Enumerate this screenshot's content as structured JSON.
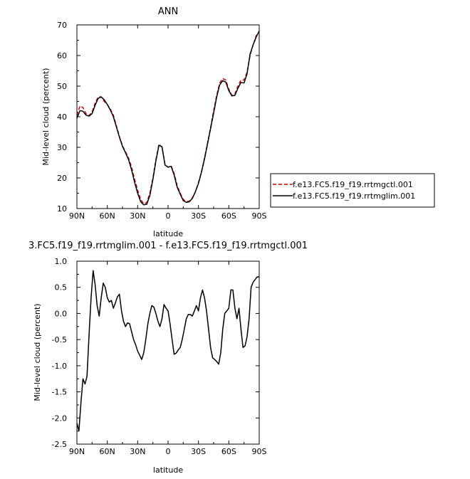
{
  "chart_data": [
    {
      "type": "line",
      "title": "ANN",
      "xlabel": "latitude",
      "ylabel": "Mid-level cloud (percent)",
      "xlim": [
        90,
        -90
      ],
      "ylim": [
        10,
        70
      ],
      "xticks": [
        90,
        60,
        30,
        0,
        -30,
        -60,
        -90
      ],
      "xtick_labels": [
        "90N",
        "60N",
        "30N",
        "0",
        "30S",
        "60S",
        "90S"
      ],
      "yticks": [
        10,
        20,
        30,
        40,
        50,
        60,
        70
      ],
      "ytick_labels": [
        "10",
        "20",
        "30",
        "40",
        "50",
        "60",
        "70"
      ],
      "legend_position": "right",
      "series": [
        {
          "name": "f.e13.FC5.f19_f19.rrtmgctl.001",
          "color": "#cc0000",
          "dash": "dashed",
          "x": [
            90,
            87,
            84,
            81,
            78,
            75,
            72,
            69,
            66,
            63,
            60,
            57,
            54,
            51,
            48,
            45,
            42,
            39,
            36,
            33,
            30,
            27,
            24,
            21,
            18,
            15,
            12,
            9,
            6,
            3,
            0,
            -3,
            -6,
            -9,
            -12,
            -15,
            -18,
            -21,
            -24,
            -27,
            -30,
            -33,
            -36,
            -39,
            -42,
            -45,
            -48,
            -51,
            -54,
            -57,
            -60,
            -63,
            -66,
            -69,
            -72,
            -75,
            -78,
            -81,
            -84,
            -87,
            -90
          ],
          "y": [
            40.5,
            43.5,
            43.0,
            41.0,
            40.4,
            41.5,
            44.5,
            46.5,
            46.5,
            45.0,
            44.0,
            42.5,
            40.5,
            37.0,
            33.5,
            30.5,
            28.5,
            26.5,
            23.5,
            19.5,
            16.0,
            13.0,
            11.5,
            12.0,
            15.0,
            20.0,
            26.0,
            31.0,
            30.0,
            24.5,
            23.5,
            24.0,
            21.5,
            17.5,
            15.0,
            13.0,
            12.2,
            12.5,
            13.5,
            15.5,
            18.5,
            22.0,
            26.5,
            31.5,
            36.5,
            42.0,
            47.0,
            51.0,
            52.5,
            52.0,
            49.0,
            47.0,
            47.5,
            50.0,
            52.0,
            52.0,
            54.5,
            60.0,
            63.5,
            66.5,
            67.5
          ]
        },
        {
          "name": "f.e13.FC5.f19_f19.rrtmglim.001",
          "color": "#000000",
          "dash": "solid",
          "x": [
            90,
            87,
            84,
            81,
            78,
            75,
            72,
            69,
            66,
            63,
            60,
            57,
            54,
            51,
            48,
            45,
            42,
            39,
            36,
            33,
            30,
            27,
            24,
            21,
            18,
            15,
            12,
            9,
            6,
            3,
            0,
            -3,
            -6,
            -9,
            -12,
            -15,
            -18,
            -21,
            -24,
            -27,
            -30,
            -33,
            -36,
            -39,
            -42,
            -45,
            -48,
            -51,
            -54,
            -57,
            -60,
            -63,
            -66,
            -69,
            -72,
            -75,
            -78,
            -81,
            -84,
            -87,
            -90
          ],
          "y": [
            39.5,
            42.0,
            41.8,
            40.5,
            40.2,
            41.0,
            43.8,
            46.0,
            46.5,
            45.5,
            44.0,
            42.2,
            40.0,
            36.6,
            33.3,
            30.3,
            28.2,
            26.0,
            22.6,
            18.5,
            15.0,
            12.2,
            11.2,
            11.4,
            14.2,
            19.5,
            25.5,
            30.7,
            30.2,
            24.2,
            23.5,
            23.8,
            21.0,
            17.0,
            14.7,
            12.6,
            12.0,
            12.2,
            13.3,
            15.5,
            18.2,
            21.9,
            26.2,
            31.2,
            36.1,
            41.2,
            46.5,
            50.4,
            51.8,
            51.3,
            48.5,
            46.8,
            47.0,
            49.3,
            51.2,
            51.0,
            54.0,
            60.5,
            63.5,
            66.0,
            68.0
          ]
        }
      ]
    },
    {
      "type": "line",
      "title": "3.FC5.f19_f19.rrtmglim.001 - f.e13.FC5.f19_f19.rrtmgctl.001",
      "xlabel": "latitude",
      "ylabel": "Mid-level cloud (percent)",
      "xlim": [
        90,
        -90
      ],
      "ylim": [
        -2.5,
        1.0
      ],
      "xticks": [
        90,
        60,
        30,
        0,
        -30,
        -60,
        -90
      ],
      "xtick_labels": [
        "90N",
        "60N",
        "30N",
        "0",
        "30S",
        "60S",
        "90S"
      ],
      "yticks": [
        -2.5,
        -2.0,
        -1.5,
        -1.0,
        -0.5,
        0.0,
        0.5,
        1.0
      ],
      "ytick_labels": [
        "-2.5",
        "-2.0",
        "-1.5",
        "-1.0",
        "-0.5",
        "0.0",
        "0.5",
        "1.0"
      ],
      "series": [
        {
          "color": "#000000",
          "dash": "solid",
          "x": [
            90,
            88,
            86,
            84,
            82,
            80,
            78,
            76,
            74,
            72,
            70,
            68,
            66,
            64,
            62,
            60,
            58,
            56,
            54,
            52,
            50,
            48,
            46,
            44,
            42,
            40,
            38,
            36,
            34,
            32,
            30,
            28,
            26,
            24,
            22,
            20,
            18,
            16,
            14,
            12,
            10,
            8,
            6,
            4,
            2,
            0,
            -2,
            -4,
            -6,
            -8,
            -10,
            -12,
            -14,
            -16,
            -18,
            -20,
            -22,
            -24,
            -26,
            -28,
            -30,
            -32,
            -34,
            -36,
            -38,
            -40,
            -42,
            -44,
            -46,
            -48,
            -50,
            -52,
            -54,
            -56,
            -58,
            -60,
            -62,
            -64,
            -66,
            -68,
            -70,
            -72,
            -74,
            -76,
            -78,
            -80,
            -82,
            -84,
            -86,
            -88,
            -90
          ],
          "y": [
            -2.1,
            -2.25,
            -1.7,
            -1.25,
            -1.35,
            -1.2,
            -0.4,
            0.3,
            0.82,
            0.55,
            0.15,
            -0.05,
            0.3,
            0.58,
            0.5,
            0.3,
            0.22,
            0.25,
            0.1,
            0.2,
            0.32,
            0.37,
            0.05,
            -0.15,
            -0.25,
            -0.18,
            -0.2,
            -0.35,
            -0.5,
            -0.6,
            -0.72,
            -0.8,
            -0.88,
            -0.75,
            -0.5,
            -0.2,
            0.0,
            0.15,
            0.12,
            0.0,
            -0.15,
            -0.25,
            -0.1,
            0.17,
            0.1,
            0.05,
            -0.2,
            -0.5,
            -0.78,
            -0.76,
            -0.7,
            -0.65,
            -0.5,
            -0.3,
            -0.1,
            -0.02,
            -0.02,
            -0.05,
            0.05,
            0.15,
            0.05,
            0.3,
            0.45,
            0.3,
            0.05,
            -0.3,
            -0.65,
            -0.85,
            -0.88,
            -0.92,
            -0.97,
            -0.75,
            -0.3,
            0.0,
            0.05,
            0.1,
            0.45,
            0.45,
            0.1,
            -0.1,
            0.1,
            -0.3,
            -0.65,
            -0.62,
            -0.45,
            -0.1,
            0.5,
            0.6,
            0.65,
            0.7,
            0.7
          ]
        }
      ]
    }
  ]
}
